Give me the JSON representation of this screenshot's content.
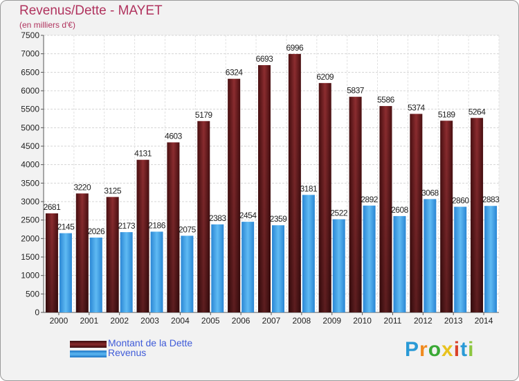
{
  "chart_data": {
    "type": "bar",
    "title": "Revenus/Dette - MAYET",
    "subtitle": "(en milliers d'€)",
    "categories": [
      "2000",
      "2001",
      "2002",
      "2003",
      "2004",
      "2005",
      "2006",
      "2007",
      "2008",
      "2009",
      "2010",
      "2011",
      "2012",
      "2013",
      "2014"
    ],
    "series": [
      {
        "name": "Montant de la Dette",
        "color": "#7a1f22",
        "values": [
          2681,
          3220,
          3125,
          4131,
          4603,
          5179,
          6324,
          6693,
          6996,
          6209,
          5837,
          5586,
          5374,
          5189,
          5264
        ]
      },
      {
        "name": "Revenus",
        "color": "#3f9fe6",
        "values": [
          2145,
          2026,
          2173,
          2186,
          2075,
          2383,
          2454,
          2359,
          3181,
          2522,
          2892,
          2608,
          3068,
          2860,
          2883
        ]
      }
    ],
    "ylim": [
      0,
      7500
    ],
    "yticks": [
      0,
      500,
      1000,
      1500,
      2000,
      2500,
      3000,
      3500,
      4000,
      4500,
      5000,
      5500,
      6000,
      6500,
      7000,
      7500
    ],
    "grid": true,
    "legend_position": "bottom-left"
  },
  "logo": {
    "text": "Proxiti",
    "colors": [
      "#2a9ad6",
      "#f08a1e",
      "#3aa935",
      "#e8c21e",
      "#d9432b",
      "#2a9ad6",
      "#8cc63f"
    ]
  }
}
